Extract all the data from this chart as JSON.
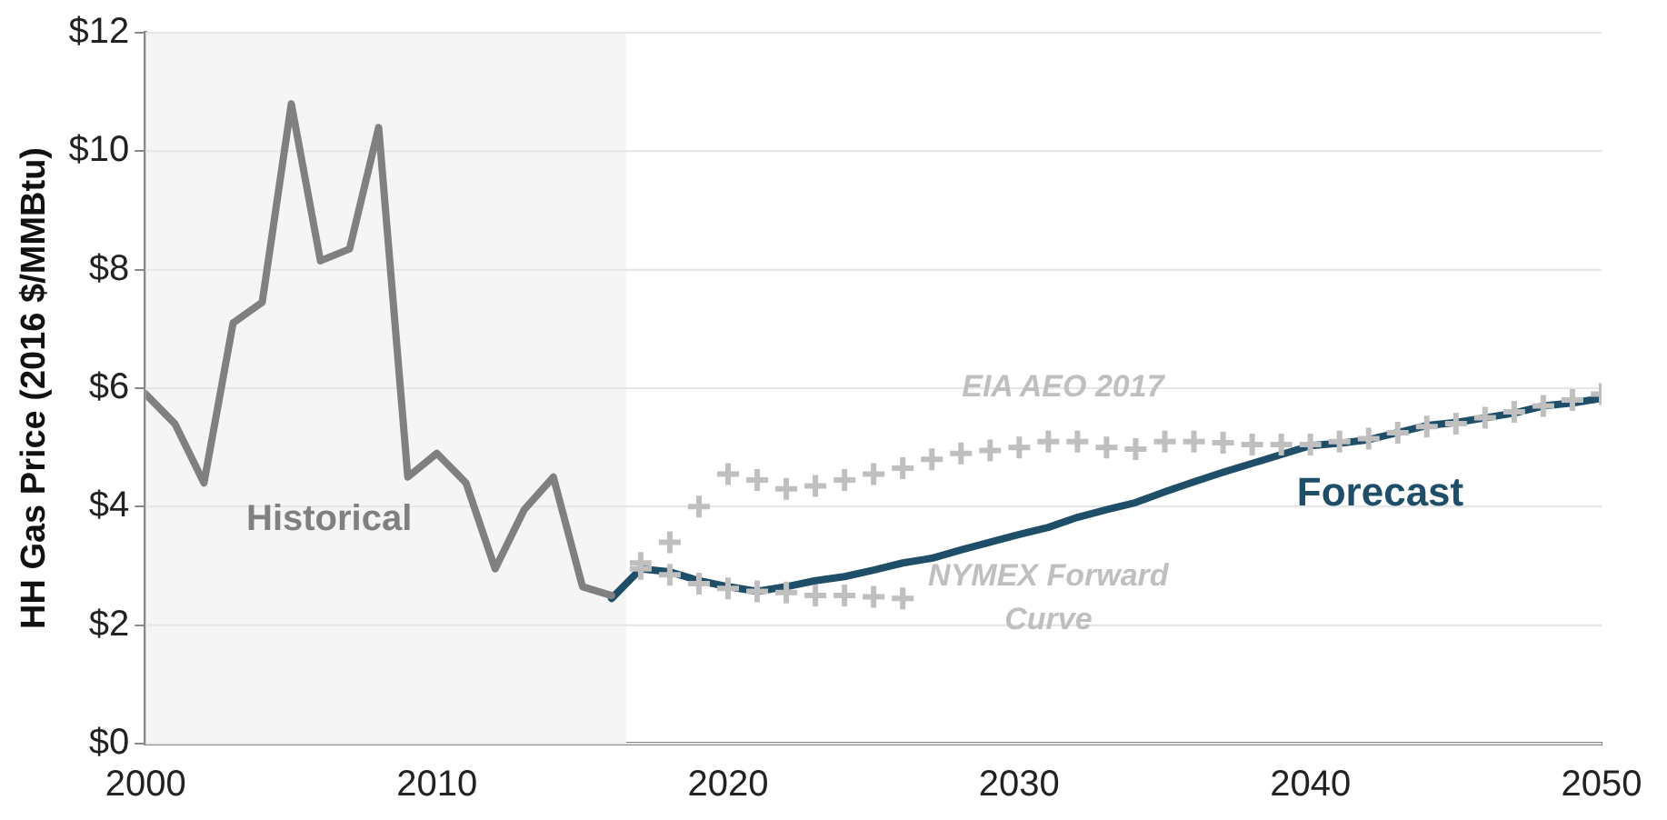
{
  "chart_data": {
    "type": "line",
    "ylabel": "HH Gas Price (2016 $/MMBtu)",
    "xlim": [
      2000,
      2050
    ],
    "xticks": [
      2000,
      2010,
      2020,
      2030,
      2040,
      2050
    ],
    "ylim": [
      0,
      12
    ],
    "yticks": [
      {
        "value": 0,
        "label": "$0"
      },
      {
        "value": 2,
        "label": "$2"
      },
      {
        "value": 4,
        "label": "$4"
      },
      {
        "value": 6,
        "label": "$6"
      },
      {
        "value": 8,
        "label": "$8"
      },
      {
        "value": 10,
        "label": "$10"
      },
      {
        "value": 12,
        "label": "$12"
      }
    ],
    "grid": "y",
    "legend": false,
    "bands": [
      {
        "axis": "x",
        "from": 2000,
        "to": 2016.5,
        "color": "#f5f5f5"
      }
    ],
    "series": [
      {
        "name": "Historical",
        "color": "#808080",
        "marker": "none",
        "x": [
          2000,
          2001,
          2002,
          2003,
          2004,
          2005,
          2006,
          2007,
          2008,
          2009,
          2010,
          2011,
          2012,
          2013,
          2014,
          2015,
          2016
        ],
        "values": [
          5.9,
          5.4,
          4.4,
          7.1,
          7.45,
          10.8,
          8.15,
          8.35,
          10.4,
          4.5,
          4.9,
          4.4,
          2.95,
          3.95,
          4.5,
          2.65,
          2.5
        ]
      },
      {
        "name": "Forecast",
        "color": "#1f4e69",
        "marker": "none",
        "x": [
          2016,
          2017,
          2018,
          2019,
          2020,
          2021,
          2022,
          2023,
          2024,
          2025,
          2026,
          2027,
          2028,
          2029,
          2030,
          2031,
          2032,
          2033,
          2034,
          2035,
          2036,
          2037,
          2038,
          2039,
          2040,
          2041,
          2042,
          2043,
          2044,
          2045,
          2046,
          2047,
          2048,
          2049,
          2050
        ],
        "values": [
          2.45,
          2.95,
          2.9,
          2.75,
          2.65,
          2.57,
          2.65,
          2.75,
          2.82,
          2.93,
          3.05,
          3.13,
          3.27,
          3.4,
          3.53,
          3.65,
          3.82,
          3.95,
          4.07,
          4.25,
          4.42,
          4.58,
          4.73,
          4.88,
          5.03,
          5.07,
          5.13,
          5.25,
          5.37,
          5.42,
          5.5,
          5.58,
          5.7,
          5.75,
          5.83
        ]
      },
      {
        "name": "EIA AEO 2017",
        "type": "scatter",
        "color": "#bfbfbf",
        "marker": "cross",
        "x": [
          2017,
          2018,
          2019,
          2020,
          2021,
          2022,
          2023,
          2024,
          2025,
          2026,
          2027,
          2028,
          2029,
          2030,
          2031,
          2032,
          2033,
          2034,
          2035,
          2036,
          2037,
          2038,
          2039,
          2040,
          2041,
          2042,
          2043,
          2044,
          2045,
          2046,
          2047,
          2048,
          2049,
          2050
        ],
        "values": [
          3.05,
          3.4,
          4.0,
          4.55,
          4.45,
          4.3,
          4.35,
          4.45,
          4.55,
          4.65,
          4.8,
          4.9,
          4.95,
          5.0,
          5.1,
          5.1,
          5.0,
          4.97,
          5.1,
          5.1,
          5.08,
          5.05,
          5.05,
          5.05,
          5.1,
          5.15,
          5.25,
          5.35,
          5.4,
          5.5,
          5.6,
          5.7,
          5.8,
          5.9
        ]
      },
      {
        "name": "NYMEX Forward Curve",
        "type": "scatter",
        "color": "#bfbfbf",
        "marker": "cross",
        "x": [
          2017,
          2018,
          2019,
          2020,
          2021,
          2022,
          2023,
          2024,
          2025,
          2026
        ],
        "values": [
          2.95,
          2.85,
          2.7,
          2.62,
          2.57,
          2.55,
          2.5,
          2.5,
          2.48,
          2.45
        ]
      }
    ]
  }
}
